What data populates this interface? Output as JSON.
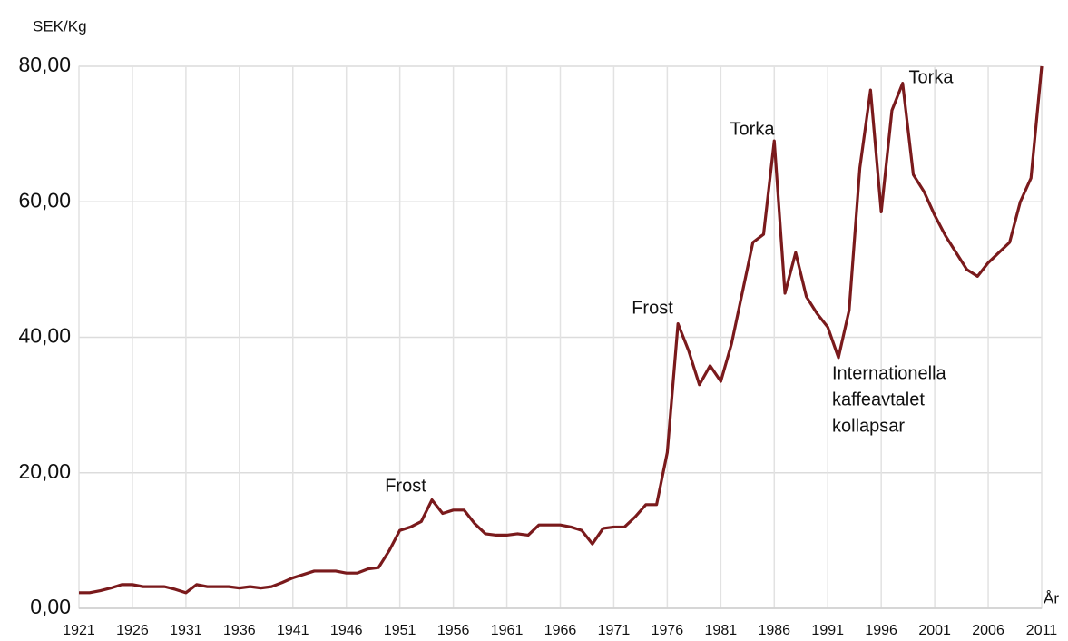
{
  "chart_data": {
    "type": "line",
    "y_label": "SEK/Kg",
    "x_label": "År",
    "x": [
      1921,
      1922,
      1923,
      1924,
      1925,
      1926,
      1927,
      1928,
      1929,
      1930,
      1931,
      1932,
      1933,
      1934,
      1935,
      1936,
      1937,
      1938,
      1939,
      1940,
      1941,
      1942,
      1943,
      1944,
      1945,
      1946,
      1947,
      1948,
      1949,
      1950,
      1951,
      1952,
      1953,
      1954,
      1955,
      1956,
      1957,
      1958,
      1959,
      1960,
      1961,
      1962,
      1963,
      1964,
      1965,
      1966,
      1967,
      1968,
      1969,
      1970,
      1971,
      1972,
      1973,
      1974,
      1975,
      1976,
      1977,
      1978,
      1979,
      1980,
      1981,
      1982,
      1983,
      1984,
      1985,
      1986,
      1987,
      1988,
      1989,
      1990,
      1991,
      1992,
      1993,
      1994,
      1995,
      1996,
      1997,
      1998,
      1999,
      2000,
      2001,
      2002,
      2003,
      2004,
      2005,
      2006,
      2007,
      2008,
      2009,
      2010,
      2011
    ],
    "series": [
      {
        "color": "#7a1a1c",
        "values": [
          2.3,
          2.3,
          2.6,
          3.0,
          3.5,
          3.5,
          3.2,
          3.2,
          3.2,
          2.8,
          2.3,
          3.5,
          3.2,
          3.2,
          3.2,
          3.0,
          3.2,
          3.0,
          3.2,
          3.8,
          4.5,
          5.0,
          5.5,
          5.5,
          5.5,
          5.2,
          5.2,
          5.8,
          6.0,
          8.5,
          11.5,
          12.0,
          12.8,
          16.0,
          14.0,
          14.5,
          14.5,
          12.5,
          11.0,
          10.8,
          10.8,
          11.0,
          10.8,
          12.3,
          12.3,
          12.3,
          12.0,
          11.5,
          9.5,
          11.8,
          12.0,
          12.0,
          13.5,
          15.3,
          15.3,
          23.0,
          42.0,
          38.0,
          33.0,
          35.8,
          33.5,
          39.0,
          46.5,
          54.0,
          55.2,
          69.0,
          46.5,
          52.5,
          46.0,
          43.5,
          41.5,
          37.0,
          44.0,
          65.0,
          76.5,
          58.5,
          73.5,
          77.5,
          64.0,
          61.5,
          58.0,
          55.0,
          52.5,
          50.0,
          49.0,
          51.0,
          52.5,
          54.0,
          60.0,
          63.5,
          80.0
        ]
      }
    ],
    "xlim": [
      1921,
      2011
    ],
    "xticks": [
      1921,
      1926,
      1931,
      1936,
      1941,
      1946,
      1951,
      1956,
      1961,
      1966,
      1971,
      1976,
      1981,
      1986,
      1991,
      1996,
      2001,
      2006,
      2011
    ],
    "ylim": [
      0,
      80
    ],
    "yticks": [
      {
        "value": 0,
        "label": "0,00"
      },
      {
        "value": 20,
        "label": "20,00"
      },
      {
        "value": 40,
        "label": "40,00"
      },
      {
        "value": 60,
        "label": "60,00"
      },
      {
        "value": 80,
        "label": "80,00"
      }
    ],
    "grid": true,
    "annotations": [
      "Frost",
      "Frost",
      "Torka",
      "Torka",
      "Internationella",
      "kaffeavtalet",
      "kollapsar"
    ]
  }
}
